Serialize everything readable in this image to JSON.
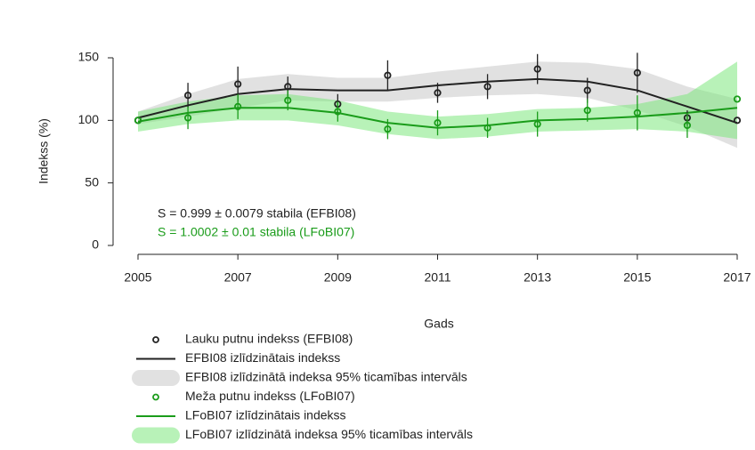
{
  "chart_data": {
    "type": "line",
    "x_label": "Gads",
    "y_label": "Indekss (%)",
    "x": [
      2005,
      2006,
      2007,
      2008,
      2009,
      2010,
      2011,
      2012,
      2013,
      2014,
      2015,
      2016,
      2017
    ],
    "xlim": [
      2005,
      2017
    ],
    "xticks": [
      2005,
      2007,
      2009,
      2011,
      2013,
      2015,
      2017
    ],
    "ylim": [
      0,
      150
    ],
    "yticks": [
      0,
      50,
      100,
      150
    ],
    "annotations": [
      {
        "text": "S = 0.999 ± 0.0079 stabila (EFBI08)",
        "color": "#222222"
      },
      {
        "text": "S = 1.0002 ± 0.01 stabila (LFoBI07)",
        "color": "#1a9c1a"
      }
    ],
    "series": [
      {
        "name": "Lauku putnu indekss (EFBI08)",
        "kind": "points",
        "color": "#222222",
        "values": [
          100,
          120,
          129,
          127,
          113,
          136,
          122,
          127,
          141,
          124,
          138,
          102,
          100
        ],
        "errors": [
          0,
          10,
          14,
          8,
          8,
          12,
          8,
          10,
          12,
          10,
          16,
          6,
          0
        ]
      },
      {
        "name": "EFBI08 izlīdzinātais indekss",
        "kind": "line",
        "color": "#222222",
        "values": [
          102,
          112,
          121,
          125,
          124,
          124,
          128,
          131,
          133,
          131,
          124,
          111,
          98
        ]
      },
      {
        "name": "EFBI08 izlīdzinātā indeksa 95% ticamības intervāls",
        "kind": "band",
        "color": "#c8c8c8",
        "lower": [
          97,
          103,
          110,
          116,
          115,
          115,
          118,
          120,
          121,
          118,
          108,
          95,
          78
        ],
        "upper": [
          107,
          121,
          133,
          137,
          134,
          134,
          139,
          143,
          147,
          146,
          141,
          127,
          117
        ]
      },
      {
        "name": "Meža putnu indekss (LFoBI07)",
        "kind": "points",
        "color": "#1a9c1a",
        "values": [
          100,
          102,
          111,
          116,
          107,
          93,
          98,
          94,
          97,
          108,
          106,
          96,
          117
        ],
        "errors": [
          0,
          9,
          10,
          8,
          8,
          8,
          10,
          8,
          10,
          9,
          14,
          10,
          0
        ]
      },
      {
        "name": "LFoBI07 izlīdzinātais indekss",
        "kind": "line",
        "color": "#1a9c1a",
        "values": [
          99,
          106,
          110,
          110,
          106,
          98,
          94,
          96,
          100,
          101,
          103,
          106,
          110
        ]
      },
      {
        "name": "LFoBI07 izlīdzinātā indeksa 95% ticamības intervāls",
        "kind": "band",
        "color": "#7ee87e",
        "lower": [
          91,
          97,
          100,
          100,
          96,
          89,
          85,
          87,
          91,
          92,
          93,
          91,
          85
        ],
        "upper": [
          107,
          115,
          120,
          121,
          116,
          107,
          103,
          105,
          109,
          110,
          113,
          121,
          147
        ]
      }
    ]
  }
}
